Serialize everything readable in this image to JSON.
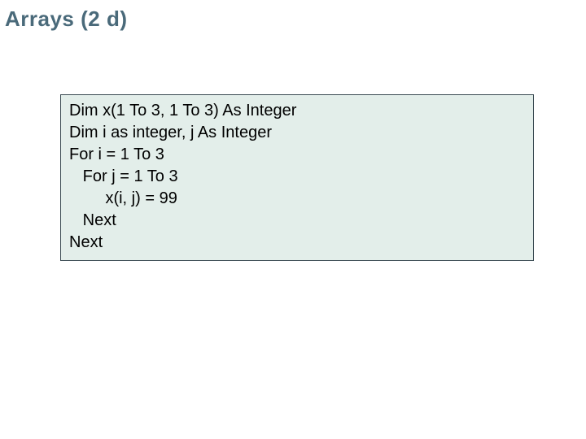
{
  "slide": {
    "title": "Arrays (2 d)",
    "title_color": "#4a6a7a",
    "title_fontsize": 26,
    "background_color": "#ffffff"
  },
  "code_box": {
    "background_color": "#e3eeea",
    "border_color": "#3a4a52",
    "text_color": "#000000",
    "fontsize": 20,
    "lines": [
      "Dim x(1 To 3, 1 To 3) As Integer",
      "Dim i as integer, j As Integer",
      "For i = 1 To 3",
      "   For j = 1 To 3",
      "        x(i, j) = 99",
      "   Next",
      "Next"
    ]
  }
}
